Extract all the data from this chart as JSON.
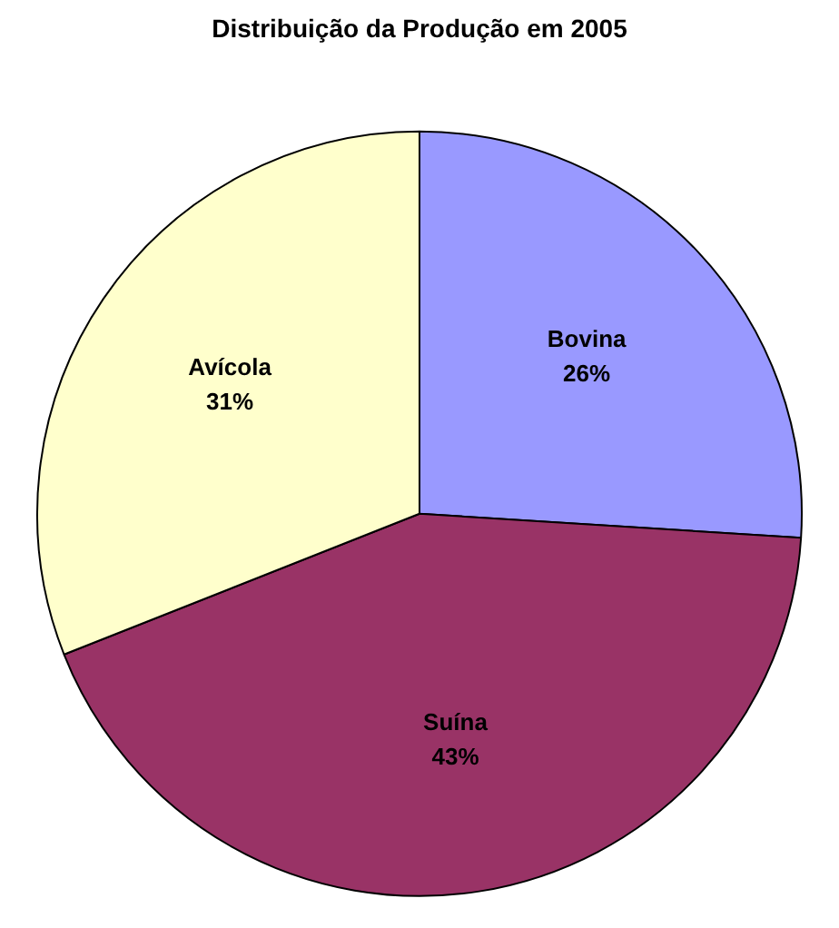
{
  "chart_data": {
    "type": "pie",
    "title": "Distribuição da Produção em 2005",
    "categories": [
      "Bovina",
      "Suína",
      "Avícola"
    ],
    "values": [
      26,
      43,
      31
    ],
    "value_labels": [
      "26%",
      "43%",
      "31%"
    ],
    "colors": [
      "#9999ff",
      "#993366",
      "#ffffcc"
    ],
    "legend": false
  }
}
